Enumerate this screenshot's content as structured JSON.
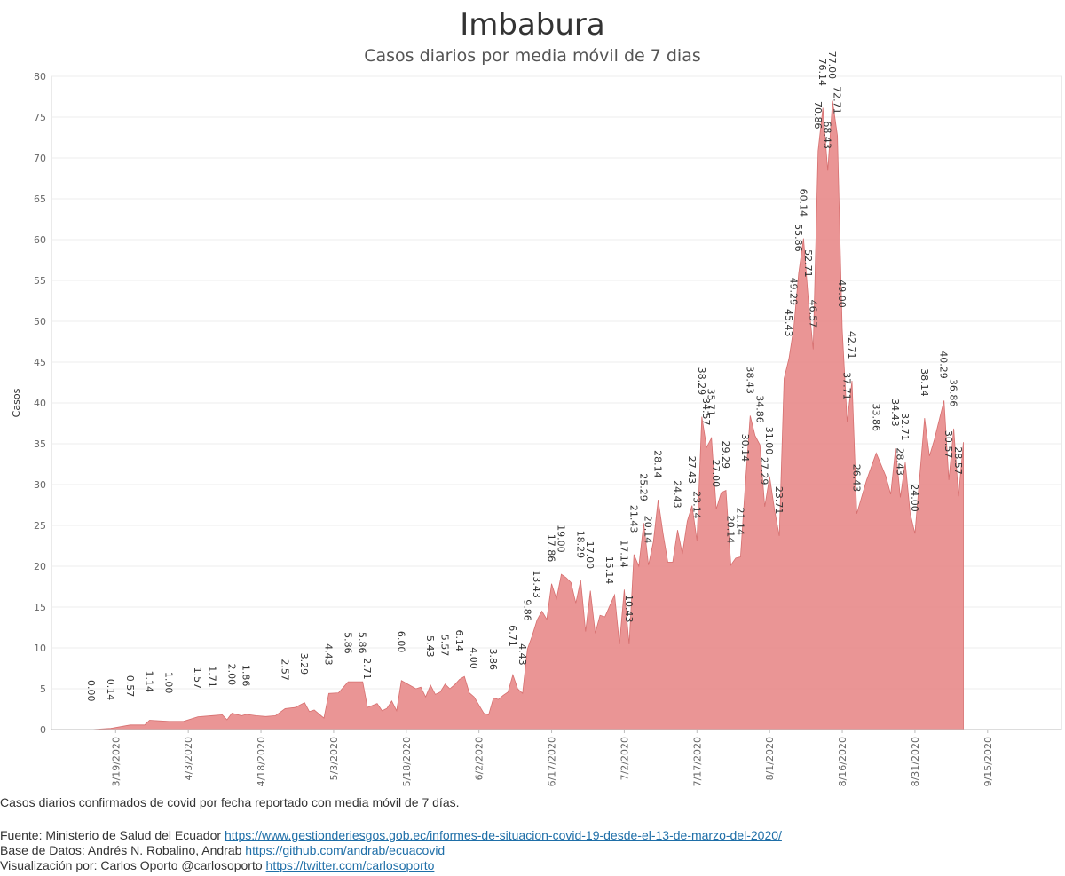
{
  "chart_data": {
    "type": "area",
    "title": "Imbabura",
    "subtitle": "Casos diarios por media móvil de 7 dias",
    "ylabel": "Casos",
    "xlabel": "",
    "ylim": [
      0,
      80
    ],
    "yticks": [
      0,
      5,
      10,
      15,
      20,
      25,
      30,
      35,
      40,
      45,
      50,
      55,
      60,
      65,
      70,
      75,
      80
    ],
    "grid": true,
    "color": "#e88a8a",
    "start_date": "3/14/2020",
    "end_date": "9/22/2020",
    "xticks": [
      "3/19/2020",
      "4/3/2020",
      "4/18/2020",
      "5/3/2020",
      "5/18/2020",
      "6/2/2020",
      "6/17/2020",
      "7/2/2020",
      "7/17/2020",
      "8/1/2020",
      "8/16/2020",
      "8/31/2020",
      "9/15/2020"
    ],
    "points": [
      {
        "x": "3/14/2020",
        "y": 0.0,
        "label": "0.00"
      },
      {
        "x": "3/18/2020",
        "y": 0.14,
        "label": "0.14"
      },
      {
        "x": "3/22/2020",
        "y": 0.57,
        "label": "0.57"
      },
      {
        "x": "3/25/2020",
        "y": 0.57
      },
      {
        "x": "3/26/2020",
        "y": 1.14,
        "label": "1.14"
      },
      {
        "x": "3/30/2020",
        "y": 1.0,
        "label": "1.00"
      },
      {
        "x": "4/2/2020",
        "y": 1.0
      },
      {
        "x": "4/5/2020",
        "y": 1.57,
        "label": "1.57"
      },
      {
        "x": "4/8/2020",
        "y": 1.71,
        "label": "1.71"
      },
      {
        "x": "4/10/2020",
        "y": 1.8
      },
      {
        "x": "4/11/2020",
        "y": 1.2
      },
      {
        "x": "4/12/2020",
        "y": 2.0,
        "label": "2.00"
      },
      {
        "x": "4/14/2020",
        "y": 1.7
      },
      {
        "x": "4/15/2020",
        "y": 1.86,
        "label": "1.86"
      },
      {
        "x": "4/17/2020",
        "y": 1.7
      },
      {
        "x": "4/19/2020",
        "y": 1.6
      },
      {
        "x": "4/21/2020",
        "y": 1.7
      },
      {
        "x": "4/23/2020",
        "y": 2.57,
        "label": "2.57"
      },
      {
        "x": "4/25/2020",
        "y": 2.7
      },
      {
        "x": "4/27/2020",
        "y": 3.29,
        "label": "3.29"
      },
      {
        "x": "4/28/2020",
        "y": 2.2
      },
      {
        "x": "4/29/2020",
        "y": 2.4
      },
      {
        "x": "5/1/2020",
        "y": 1.4
      },
      {
        "x": "5/2/2020",
        "y": 4.43,
        "label": "4.43"
      },
      {
        "x": "5/4/2020",
        "y": 4.5
      },
      {
        "x": "5/6/2020",
        "y": 5.86,
        "label": "5.86"
      },
      {
        "x": "5/9/2020",
        "y": 5.86,
        "label": "5.86"
      },
      {
        "x": "5/10/2020",
        "y": 2.71,
        "label": "2.71"
      },
      {
        "x": "5/12/2020",
        "y": 3.2
      },
      {
        "x": "5/13/2020",
        "y": 2.3
      },
      {
        "x": "5/14/2020",
        "y": 2.6
      },
      {
        "x": "5/15/2020",
        "y": 3.5
      },
      {
        "x": "5/16/2020",
        "y": 2.3
      },
      {
        "x": "5/17/2020",
        "y": 6.0,
        "label": "6.00"
      },
      {
        "x": "5/20/2020",
        "y": 5.0
      },
      {
        "x": "5/21/2020",
        "y": 5.2
      },
      {
        "x": "5/22/2020",
        "y": 4.0
      },
      {
        "x": "5/23/2020",
        "y": 5.43,
        "label": "5.43"
      },
      {
        "x": "5/24/2020",
        "y": 4.3
      },
      {
        "x": "5/25/2020",
        "y": 4.6
      },
      {
        "x": "5/26/2020",
        "y": 5.57,
        "label": "5.57"
      },
      {
        "x": "5/27/2020",
        "y": 5.0
      },
      {
        "x": "5/28/2020",
        "y": 5.5
      },
      {
        "x": "5/29/2020",
        "y": 6.14,
        "label": "6.14"
      },
      {
        "x": "5/30/2020",
        "y": 6.5
      },
      {
        "x": "5/31/2020",
        "y": 4.5
      },
      {
        "x": "6/1/2020",
        "y": 4.0,
        "label": "4.00"
      },
      {
        "x": "6/3/2020",
        "y": 2.0
      },
      {
        "x": "6/4/2020",
        "y": 1.8
      },
      {
        "x": "6/5/2020",
        "y": 3.86,
        "label": "3.86"
      },
      {
        "x": "6/6/2020",
        "y": 3.7
      },
      {
        "x": "6/7/2020",
        "y": 4.2
      },
      {
        "x": "6/8/2020",
        "y": 4.6
      },
      {
        "x": "6/9/2020",
        "y": 6.71,
        "label": "6.71"
      },
      {
        "x": "6/10/2020",
        "y": 5.0
      },
      {
        "x": "6/11/2020",
        "y": 4.43,
        "label": "4.43"
      },
      {
        "x": "6/12/2020",
        "y": 9.86,
        "label": "9.86"
      },
      {
        "x": "6/13/2020",
        "y": 11.5
      },
      {
        "x": "6/14/2020",
        "y": 13.43,
        "label": "13.43"
      },
      {
        "x": "6/15/2020",
        "y": 14.5
      },
      {
        "x": "6/16/2020",
        "y": 13.5
      },
      {
        "x": "6/17/2020",
        "y": 17.86,
        "label": "17.86"
      },
      {
        "x": "6/18/2020",
        "y": 16.0
      },
      {
        "x": "6/19/2020",
        "y": 19.0,
        "label": "19.00"
      },
      {
        "x": "6/20/2020",
        "y": 18.6
      },
      {
        "x": "6/21/2020",
        "y": 18.0
      },
      {
        "x": "6/22/2020",
        "y": 15.5
      },
      {
        "x": "6/23/2020",
        "y": 18.29,
        "label": "18.29"
      },
      {
        "x": "6/24/2020",
        "y": 12.0
      },
      {
        "x": "6/25/2020",
        "y": 17.0,
        "label": "17.00"
      },
      {
        "x": "6/26/2020",
        "y": 11.8
      },
      {
        "x": "6/27/2020",
        "y": 14.0
      },
      {
        "x": "6/28/2020",
        "y": 13.8
      },
      {
        "x": "6/29/2020",
        "y": 15.14,
        "label": "15.14"
      },
      {
        "x": "6/30/2020",
        "y": 16.5
      },
      {
        "x": "7/1/2020",
        "y": 10.43
      },
      {
        "x": "7/2/2020",
        "y": 17.14,
        "label": "17.14"
      },
      {
        "x": "7/3/2020",
        "y": 10.43,
        "label": "10.43"
      },
      {
        "x": "7/4/2020",
        "y": 21.43,
        "label": "21.43"
      },
      {
        "x": "7/5/2020",
        "y": 20.0
      },
      {
        "x": "7/6/2020",
        "y": 25.29,
        "label": "25.29"
      },
      {
        "x": "7/7/2020",
        "y": 20.14,
        "label": "20.14"
      },
      {
        "x": "7/8/2020",
        "y": 23.0
      },
      {
        "x": "7/9/2020",
        "y": 28.14,
        "label": "28.14"
      },
      {
        "x": "7/10/2020",
        "y": 24.0
      },
      {
        "x": "7/11/2020",
        "y": 20.5
      },
      {
        "x": "7/12/2020",
        "y": 20.5
      },
      {
        "x": "7/13/2020",
        "y": 24.43,
        "label": "24.43"
      },
      {
        "x": "7/14/2020",
        "y": 21.5
      },
      {
        "x": "7/15/2020",
        "y": 25.5
      },
      {
        "x": "7/16/2020",
        "y": 27.43,
        "label": "27.43"
      },
      {
        "x": "7/17/2020",
        "y": 23.14,
        "label": "23.14"
      },
      {
        "x": "7/18/2020",
        "y": 38.29,
        "label": "38.29"
      },
      {
        "x": "7/19/2020",
        "y": 34.57,
        "label": "34.57"
      },
      {
        "x": "7/20/2020",
        "y": 35.71,
        "label": "35.71"
      },
      {
        "x": "7/21/2020",
        "y": 27.0,
        "label": "27.00"
      },
      {
        "x": "7/22/2020",
        "y": 29.0
      },
      {
        "x": "7/23/2020",
        "y": 29.29,
        "label": "29.29"
      },
      {
        "x": "7/24/2020",
        "y": 20.14,
        "label": "20.14"
      },
      {
        "x": "7/25/2020",
        "y": 21.0
      },
      {
        "x": "7/26/2020",
        "y": 21.14,
        "label": "21.14"
      },
      {
        "x": "7/27/2020",
        "y": 30.14,
        "label": "30.14"
      },
      {
        "x": "7/28/2020",
        "y": 38.43,
        "label": "38.43"
      },
      {
        "x": "7/29/2020",
        "y": 36.0
      },
      {
        "x": "7/30/2020",
        "y": 34.86,
        "label": "34.86"
      },
      {
        "x": "7/31/2020",
        "y": 27.29,
        "label": "27.29"
      },
      {
        "x": "8/1/2020",
        "y": 31.0,
        "label": "31.00"
      },
      {
        "x": "8/2/2020",
        "y": 27.0
      },
      {
        "x": "8/3/2020",
        "y": 23.71,
        "label": "23.71"
      },
      {
        "x": "8/4/2020",
        "y": 43.0
      },
      {
        "x": "8/5/2020",
        "y": 45.43,
        "label": "45.43"
      },
      {
        "x": "8/6/2020",
        "y": 49.29,
        "label": "49.29"
      },
      {
        "x": "8/7/2020",
        "y": 55.86,
        "label": "55.86"
      },
      {
        "x": "8/8/2020",
        "y": 60.14,
        "label": "60.14"
      },
      {
        "x": "8/9/2020",
        "y": 52.71,
        "label": "52.71"
      },
      {
        "x": "8/10/2020",
        "y": 46.57,
        "label": "46.57"
      },
      {
        "x": "8/11/2020",
        "y": 70.86,
        "label": "70.86"
      },
      {
        "x": "8/12/2020",
        "y": 76.14,
        "label": "76.14"
      },
      {
        "x": "8/13/2020",
        "y": 68.43,
        "label": "68.43"
      },
      {
        "x": "8/14/2020",
        "y": 77.0,
        "label": "77.00"
      },
      {
        "x": "8/15/2020",
        "y": 72.71,
        "label": "72.71"
      },
      {
        "x": "8/16/2020",
        "y": 49.0,
        "label": "49.00"
      },
      {
        "x": "8/17/2020",
        "y": 37.71,
        "label": "37.71"
      },
      {
        "x": "8/18/2020",
        "y": 42.71,
        "label": "42.71"
      },
      {
        "x": "8/19/2020",
        "y": 26.43,
        "label": "26.43"
      },
      {
        "x": "8/21/2020",
        "y": 30.5
      },
      {
        "x": "8/23/2020",
        "y": 33.86,
        "label": "33.86"
      },
      {
        "x": "8/25/2020",
        "y": 31.0
      },
      {
        "x": "8/26/2020",
        "y": 28.8
      },
      {
        "x": "8/27/2020",
        "y": 34.43,
        "label": "34.43"
      },
      {
        "x": "8/28/2020",
        "y": 28.43,
        "label": "28.43"
      },
      {
        "x": "8/29/2020",
        "y": 32.71,
        "label": "32.71"
      },
      {
        "x": "8/30/2020",
        "y": 26.5
      },
      {
        "x": "8/31/2020",
        "y": 24.0,
        "label": "24.00"
      },
      {
        "x": "9/2/2020",
        "y": 38.14,
        "label": "38.14"
      },
      {
        "x": "9/3/2020",
        "y": 33.5
      },
      {
        "x": "9/4/2020",
        "y": 35.5
      },
      {
        "x": "9/6/2020",
        "y": 40.29,
        "label": "40.29"
      },
      {
        "x": "9/7/2020",
        "y": 30.57,
        "label": "30.57"
      },
      {
        "x": "9/8/2020",
        "y": 36.86,
        "label": "36.86"
      },
      {
        "x": "9/9/2020",
        "y": 28.57,
        "label": "28.57"
      },
      {
        "x": "9/10/2020",
        "y": 35.2
      }
    ]
  },
  "footer": {
    "note": "Casos diarios confirmados de covid por fecha reportado con media móvil de 7 días.",
    "source_label": "Fuente: Ministerio de Salud del Ecuador",
    "source_url": "https://www.gestionderiesgos.gob.ec/informes-de-situacion-covid-19-desde-el-13-de-marzo-del-2020/",
    "db_label": "Base de Datos: Andrés N. Robalino, Andrab",
    "db_url": "https://github.com/andrab/ecuacovid",
    "viz_label": "Visualización por: Carlos Oporto @carlosoporto",
    "viz_url": "https://twitter.com/carlosoporto"
  }
}
